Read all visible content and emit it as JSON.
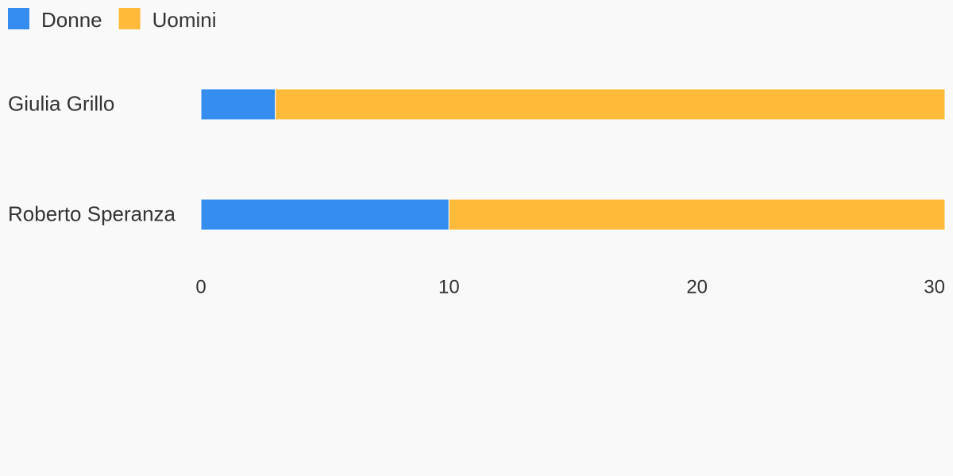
{
  "chart_data": {
    "type": "bar",
    "orientation": "horizontal",
    "stacked": true,
    "categories": [
      "Giulia Grillo",
      "Roberto Speranza"
    ],
    "series": [
      {
        "name": "Donne",
        "color": "#348def",
        "values": [
          3,
          10
        ]
      },
      {
        "name": "Uomini",
        "color": "#ffb93b",
        "values": [
          27,
          20
        ]
      }
    ],
    "xlim": [
      0,
      30
    ],
    "xticks": [
      0,
      10,
      20,
      30
    ],
    "grid": false,
    "legend": "top-left"
  }
}
